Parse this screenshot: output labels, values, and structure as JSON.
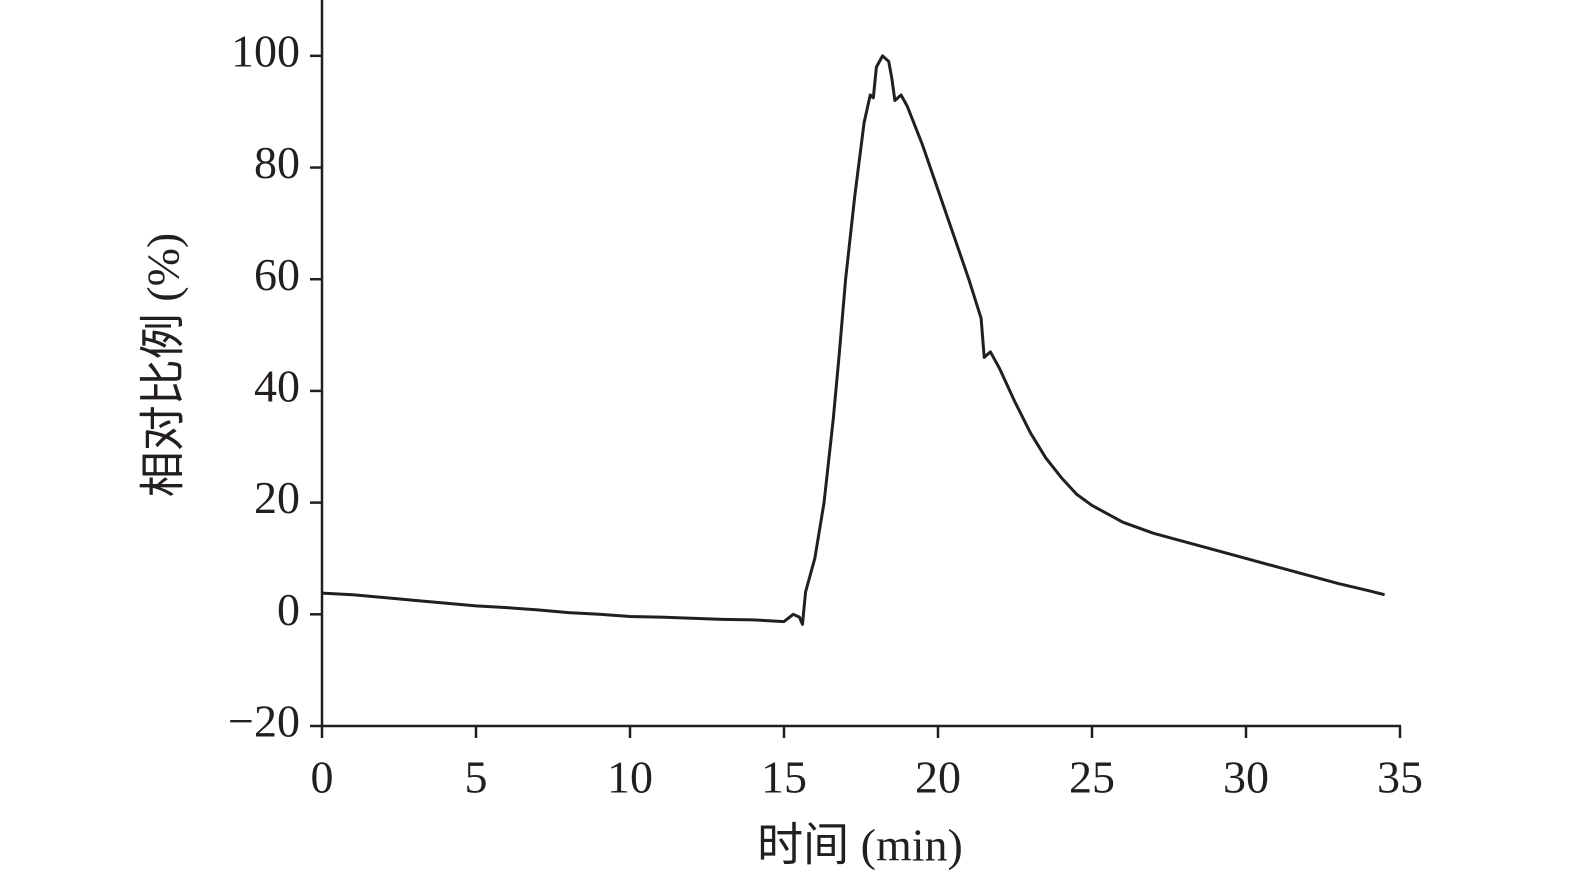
{
  "chart_data": {
    "type": "line",
    "x_label": "时间 (min)",
    "y_label": "相对比例 (%)",
    "x": [
      0,
      1,
      2,
      3,
      4,
      5,
      6,
      7,
      8,
      9,
      10,
      11,
      12,
      13,
      14,
      15,
      15.3,
      15.5,
      15.6,
      15.7,
      16,
      16.3,
      16.6,
      16.8,
      17,
      17.3,
      17.6,
      17.8,
      17.9,
      18,
      18.2,
      18.4,
      18.5,
      18.6,
      18.8,
      19,
      19.5,
      20,
      20.5,
      21,
      21.4,
      21.5,
      21.7,
      22,
      22.5,
      23,
      23.5,
      24,
      24.5,
      25,
      26,
      27,
      28,
      29,
      30,
      31,
      32,
      33,
      34,
      34.5
    ],
    "series": [
      {
        "color": "#231f20",
        "values": [
          3.8,
          3.5,
          3,
          2.5,
          2,
          1.5,
          1.2,
          0.8,
          0.3,
          0,
          -0.4,
          -0.5,
          -0.7,
          -0.9,
          -1,
          -1.3,
          0,
          -0.5,
          -1.8,
          4,
          10,
          20,
          35,
          47,
          60,
          75,
          88,
          93,
          92.5,
          98,
          100,
          99,
          96,
          92,
          93,
          91,
          84,
          76,
          68,
          60,
          53,
          46,
          47,
          44,
          38,
          32.5,
          28,
          24.5,
          21.5,
          19.5,
          16.5,
          14.5,
          13,
          11.5,
          10,
          8.5,
          7,
          5.5,
          4.2,
          3.5
        ]
      }
    ],
    "xlim": [
      0,
      35
    ],
    "xticks": [
      0,
      5,
      10,
      15,
      20,
      25,
      30,
      35
    ],
    "ylim": [
      -20,
      110
    ],
    "yticks": [
      {
        "value": -20,
        "label": "−20"
      },
      0,
      20,
      40,
      60,
      80,
      100
    ],
    "grid": false
  }
}
